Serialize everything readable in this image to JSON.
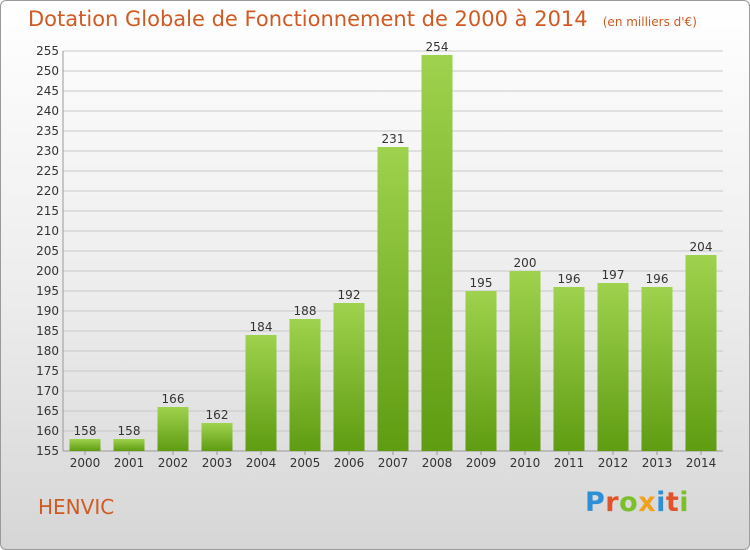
{
  "header": {
    "title": "Dotation Globale de Fonctionnement de 2000 à 2014",
    "subtitle": "(en milliers d'€)"
  },
  "commune": "HENVIC",
  "logo": {
    "text": "Proxiti",
    "letters": [
      "P",
      "r",
      "o",
      "x",
      "i",
      "t",
      "i"
    ]
  },
  "colors": {
    "bar_top": "#9fd24e",
    "bar_bottom": "#5f9c12",
    "title": "#d05a22"
  },
  "chart_data": {
    "type": "bar",
    "categories": [
      "2000",
      "2001",
      "2002",
      "2003",
      "2004",
      "2005",
      "2006",
      "2007",
      "2008",
      "2009",
      "2010",
      "2011",
      "2012",
      "2013",
      "2014"
    ],
    "values": [
      158,
      158,
      166,
      162,
      184,
      188,
      192,
      231,
      254,
      195,
      200,
      196,
      197,
      196,
      204
    ],
    "ylim": [
      155,
      255
    ],
    "yticks": [
      155,
      160,
      165,
      170,
      175,
      180,
      185,
      190,
      195,
      200,
      205,
      210,
      215,
      220,
      225,
      230,
      235,
      240,
      245,
      250,
      255
    ],
    "grid": true
  }
}
